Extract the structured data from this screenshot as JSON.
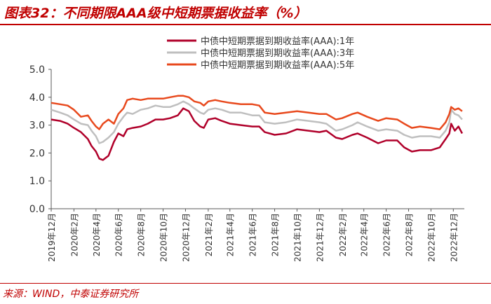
{
  "figure": {
    "title": "图表32：不同期限AAA级中短期票据收益率（%）",
    "source": "来源：WIND，中泰证券研究所"
  },
  "chart_data": {
    "type": "line",
    "ylim": [
      0,
      5
    ],
    "yticks": [
      "0.0",
      "1.0",
      "2.0",
      "3.0",
      "4.0",
      "5.0"
    ],
    "xlim": [
      "2019-12-01",
      "2022-12-31"
    ],
    "xticks": [
      {
        "date": "2019-12-01",
        "label": "2019年12月"
      },
      {
        "date": "2020-02-01",
        "label": "2020年2月"
      },
      {
        "date": "2020-04-01",
        "label": "2020年4月"
      },
      {
        "date": "2020-06-01",
        "label": "2020年6月"
      },
      {
        "date": "2020-08-01",
        "label": "2020年8月"
      },
      {
        "date": "2020-10-01",
        "label": "2020年10月"
      },
      {
        "date": "2020-12-01",
        "label": "2020年12月"
      },
      {
        "date": "2021-02-01",
        "label": "2021年2月"
      },
      {
        "date": "2021-04-01",
        "label": "2021年4月"
      },
      {
        "date": "2021-06-01",
        "label": "2021年6月"
      },
      {
        "date": "2021-08-01",
        "label": "2021年8月"
      },
      {
        "date": "2021-10-01",
        "label": "2021年10月"
      },
      {
        "date": "2021-12-01",
        "label": "2021年12月"
      },
      {
        "date": "2022-02-01",
        "label": "2022年2月"
      },
      {
        "date": "2022-04-01",
        "label": "2022年4月"
      },
      {
        "date": "2022-06-01",
        "label": "2022年6月"
      },
      {
        "date": "2022-08-01",
        "label": "2022年8月"
      },
      {
        "date": "2022-10-01",
        "label": "2022年10月"
      },
      {
        "date": "2022-12-01",
        "label": "2022年12月"
      }
    ],
    "grid": false,
    "legend_position": "top-center",
    "series": [
      {
        "name": "中债中短期票据到期收益率(AAA):1年",
        "color": "#b0002a",
        "points": [
          [
            "2019-12-01",
            3.2
          ],
          [
            "2019-12-25",
            3.15
          ],
          [
            "2020-01-15",
            3.05
          ],
          [
            "2020-02-01",
            2.9
          ],
          [
            "2020-02-20",
            2.75
          ],
          [
            "2020-03-10",
            2.5
          ],
          [
            "2020-03-20",
            2.25
          ],
          [
            "2020-04-01",
            2.05
          ],
          [
            "2020-04-10",
            1.8
          ],
          [
            "2020-04-20",
            1.75
          ],
          [
            "2020-05-05",
            1.9
          ],
          [
            "2020-05-20",
            2.4
          ],
          [
            "2020-06-01",
            2.7
          ],
          [
            "2020-06-15",
            2.6
          ],
          [
            "2020-06-25",
            2.85
          ],
          [
            "2020-07-10",
            2.9
          ],
          [
            "2020-08-01",
            2.95
          ],
          [
            "2020-08-20",
            3.05
          ],
          [
            "2020-09-10",
            3.2
          ],
          [
            "2020-10-01",
            3.2
          ],
          [
            "2020-10-20",
            3.25
          ],
          [
            "2020-11-10",
            3.35
          ],
          [
            "2020-11-25",
            3.6
          ],
          [
            "2020-12-10",
            3.5
          ],
          [
            "2020-12-25",
            3.15
          ],
          [
            "2021-01-10",
            2.95
          ],
          [
            "2021-01-20",
            2.9
          ],
          [
            "2021-02-01",
            3.2
          ],
          [
            "2021-02-20",
            3.25
          ],
          [
            "2021-03-10",
            3.15
          ],
          [
            "2021-04-01",
            3.05
          ],
          [
            "2021-05-01",
            3.0
          ],
          [
            "2021-06-01",
            2.95
          ],
          [
            "2021-06-20",
            2.95
          ],
          [
            "2021-07-05",
            2.75
          ],
          [
            "2021-08-01",
            2.65
          ],
          [
            "2021-09-01",
            2.7
          ],
          [
            "2021-10-01",
            2.85
          ],
          [
            "2021-11-01",
            2.8
          ],
          [
            "2021-12-01",
            2.75
          ],
          [
            "2021-12-20",
            2.8
          ],
          [
            "2022-01-15",
            2.55
          ],
          [
            "2022-02-01",
            2.5
          ],
          [
            "2022-03-01",
            2.65
          ],
          [
            "2022-03-15",
            2.7
          ],
          [
            "2022-04-10",
            2.55
          ],
          [
            "2022-05-10",
            2.35
          ],
          [
            "2022-06-01",
            2.45
          ],
          [
            "2022-07-01",
            2.45
          ],
          [
            "2022-07-20",
            2.2
          ],
          [
            "2022-08-10",
            2.05
          ],
          [
            "2022-09-01",
            2.1
          ],
          [
            "2022-10-01",
            2.1
          ],
          [
            "2022-10-25",
            2.2
          ],
          [
            "2022-11-10",
            2.5
          ],
          [
            "2022-11-20",
            2.7
          ],
          [
            "2022-11-25",
            3.05
          ],
          [
            "2022-12-05",
            2.8
          ],
          [
            "2022-12-15",
            2.95
          ],
          [
            "2022-12-25",
            2.7
          ]
        ]
      },
      {
        "name": "中债中短期票据到期收益率(AAA):3年",
        "color": "#bfbfbf",
        "points": [
          [
            "2019-12-01",
            3.55
          ],
          [
            "2019-12-25",
            3.45
          ],
          [
            "2020-01-15",
            3.35
          ],
          [
            "2020-02-01",
            3.2
          ],
          [
            "2020-02-20",
            3.05
          ],
          [
            "2020-03-10",
            3.0
          ],
          [
            "2020-03-20",
            2.8
          ],
          [
            "2020-04-01",
            2.6
          ],
          [
            "2020-04-10",
            2.35
          ],
          [
            "2020-04-20",
            2.4
          ],
          [
            "2020-05-05",
            2.55
          ],
          [
            "2020-05-20",
            2.75
          ],
          [
            "2020-06-01",
            3.05
          ],
          [
            "2020-06-15",
            3.3
          ],
          [
            "2020-06-25",
            3.45
          ],
          [
            "2020-07-10",
            3.4
          ],
          [
            "2020-08-01",
            3.55
          ],
          [
            "2020-08-20",
            3.6
          ],
          [
            "2020-09-10",
            3.7
          ],
          [
            "2020-10-01",
            3.65
          ],
          [
            "2020-10-20",
            3.65
          ],
          [
            "2020-11-10",
            3.75
          ],
          [
            "2020-11-25",
            3.85
          ],
          [
            "2020-12-10",
            3.75
          ],
          [
            "2020-12-25",
            3.6
          ],
          [
            "2021-01-10",
            3.45
          ],
          [
            "2021-01-20",
            3.4
          ],
          [
            "2021-02-01",
            3.55
          ],
          [
            "2021-02-20",
            3.6
          ],
          [
            "2021-03-10",
            3.55
          ],
          [
            "2021-04-01",
            3.45
          ],
          [
            "2021-05-01",
            3.45
          ],
          [
            "2021-06-01",
            3.35
          ],
          [
            "2021-06-20",
            3.35
          ],
          [
            "2021-07-05",
            3.1
          ],
          [
            "2021-08-01",
            3.05
          ],
          [
            "2021-09-01",
            3.1
          ],
          [
            "2021-10-01",
            3.2
          ],
          [
            "2021-11-01",
            3.15
          ],
          [
            "2021-12-01",
            3.1
          ],
          [
            "2021-12-20",
            3.05
          ],
          [
            "2022-01-15",
            2.8
          ],
          [
            "2022-02-01",
            2.85
          ],
          [
            "2022-03-01",
            3.0
          ],
          [
            "2022-03-15",
            3.1
          ],
          [
            "2022-04-10",
            2.95
          ],
          [
            "2022-05-10",
            2.8
          ],
          [
            "2022-06-01",
            2.85
          ],
          [
            "2022-07-01",
            2.8
          ],
          [
            "2022-07-20",
            2.65
          ],
          [
            "2022-08-10",
            2.55
          ],
          [
            "2022-09-01",
            2.6
          ],
          [
            "2022-10-01",
            2.6
          ],
          [
            "2022-10-25",
            2.55
          ],
          [
            "2022-11-10",
            2.8
          ],
          [
            "2022-11-20",
            3.1
          ],
          [
            "2022-11-25",
            3.55
          ],
          [
            "2022-12-05",
            3.4
          ],
          [
            "2022-12-15",
            3.35
          ],
          [
            "2022-12-25",
            3.2
          ]
        ]
      },
      {
        "name": "中债中短期票据到期收益率(AAA):5年",
        "color": "#e8491d",
        "points": [
          [
            "2019-12-01",
            3.8
          ],
          [
            "2019-12-25",
            3.75
          ],
          [
            "2020-01-15",
            3.7
          ],
          [
            "2020-02-01",
            3.55
          ],
          [
            "2020-02-20",
            3.3
          ],
          [
            "2020-03-10",
            3.35
          ],
          [
            "2020-03-20",
            3.15
          ],
          [
            "2020-04-01",
            2.95
          ],
          [
            "2020-04-10",
            2.85
          ],
          [
            "2020-04-20",
            3.05
          ],
          [
            "2020-05-05",
            3.2
          ],
          [
            "2020-05-20",
            3.05
          ],
          [
            "2020-06-01",
            3.4
          ],
          [
            "2020-06-15",
            3.6
          ],
          [
            "2020-06-25",
            3.9
          ],
          [
            "2020-07-10",
            3.95
          ],
          [
            "2020-08-01",
            3.9
          ],
          [
            "2020-08-20",
            3.95
          ],
          [
            "2020-09-10",
            3.95
          ],
          [
            "2020-10-01",
            3.95
          ],
          [
            "2020-10-20",
            4.0
          ],
          [
            "2020-11-10",
            4.05
          ],
          [
            "2020-11-25",
            4.05
          ],
          [
            "2020-12-10",
            4.0
          ],
          [
            "2020-12-25",
            3.85
          ],
          [
            "2021-01-10",
            3.8
          ],
          [
            "2021-01-20",
            3.7
          ],
          [
            "2021-02-01",
            3.85
          ],
          [
            "2021-02-20",
            3.9
          ],
          [
            "2021-03-10",
            3.85
          ],
          [
            "2021-04-01",
            3.8
          ],
          [
            "2021-05-01",
            3.75
          ],
          [
            "2021-06-01",
            3.75
          ],
          [
            "2021-06-20",
            3.7
          ],
          [
            "2021-07-05",
            3.45
          ],
          [
            "2021-08-01",
            3.4
          ],
          [
            "2021-09-01",
            3.45
          ],
          [
            "2021-10-01",
            3.5
          ],
          [
            "2021-11-01",
            3.45
          ],
          [
            "2021-12-01",
            3.4
          ],
          [
            "2021-12-20",
            3.4
          ],
          [
            "2022-01-15",
            3.2
          ],
          [
            "2022-02-01",
            3.25
          ],
          [
            "2022-03-01",
            3.4
          ],
          [
            "2022-03-15",
            3.45
          ],
          [
            "2022-04-10",
            3.3
          ],
          [
            "2022-05-10",
            3.15
          ],
          [
            "2022-06-01",
            3.25
          ],
          [
            "2022-07-01",
            3.2
          ],
          [
            "2022-07-20",
            3.05
          ],
          [
            "2022-08-10",
            2.9
          ],
          [
            "2022-09-01",
            2.95
          ],
          [
            "2022-10-01",
            2.9
          ],
          [
            "2022-10-25",
            2.85
          ],
          [
            "2022-11-10",
            3.1
          ],
          [
            "2022-11-20",
            3.4
          ],
          [
            "2022-11-25",
            3.65
          ],
          [
            "2022-12-05",
            3.55
          ],
          [
            "2022-12-15",
            3.6
          ],
          [
            "2022-12-25",
            3.5
          ]
        ]
      }
    ]
  }
}
